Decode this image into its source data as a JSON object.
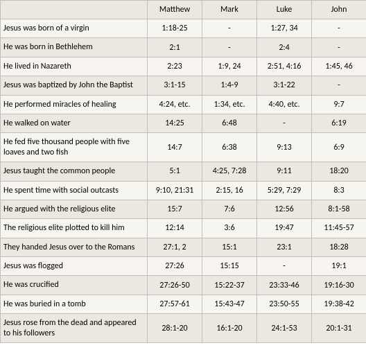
{
  "columns": [
    "Matthew",
    "Mark",
    "Luke",
    "John"
  ],
  "rows": [
    {
      "event": "Jesus was born of a virgin",
      "refs": [
        "1:18-25",
        "-",
        "1:27, 34",
        "-"
      ]
    },
    {
      "event": "He was born in Bethlehem",
      "refs": [
        "2:1",
        "-",
        "2:4",
        "-"
      ]
    },
    {
      "event": "He lived in Nazareth",
      "refs": [
        "2:23",
        "1:9, 24",
        "2:51, 4:16",
        "1:45, 46"
      ]
    },
    {
      "event": "Jesus was baptized by John the Baptist",
      "refs": [
        "3:1-15",
        "1:4-9",
        "3:1-22",
        "-"
      ]
    },
    {
      "event": "He performed miracles of healing",
      "refs": [
        "4:24, etc.",
        "1:34, etc.",
        "4:40, etc.",
        "9:7"
      ]
    },
    {
      "event": "He walked on water",
      "refs": [
        "14:25",
        "6:48",
        "-",
        "6:19"
      ]
    },
    {
      "event": "He fed five thousand people with five loaves and two fish",
      "refs": [
        "14:7",
        "6:38",
        "9:13",
        "6:9"
      ]
    },
    {
      "event": "Jesus taught the common people",
      "refs": [
        "5:1",
        "4:25, 7:28",
        "9:11",
        "18:20"
      ]
    },
    {
      "event": "He spent time with social outcasts",
      "refs": [
        "9:10, 21:31",
        "2:15, 16",
        "5:29, 7:29",
        "8:3"
      ]
    },
    {
      "event": "He argued with the religious elite",
      "refs": [
        "15:7",
        "7:6",
        "12:56",
        "8:1-58"
      ]
    },
    {
      "event": "The religious elite plotted to kill him",
      "refs": [
        "12:14",
        "3:6",
        "19:47",
        "11:45-57"
      ]
    },
    {
      "event": "They handed Jesus over to the Romans",
      "refs": [
        "27:1, 2",
        "15:1",
        "23:1",
        "18:28"
      ]
    },
    {
      "event": "Jesus was flogged",
      "refs": [
        "27:26",
        "15:15",
        "-",
        "19:1"
      ]
    },
    {
      "event": "He was crucified",
      "refs": [
        "27:26-50",
        "15:22-37",
        "23:33-46",
        "19:16-30"
      ]
    },
    {
      "event": "He was buried in a tomb",
      "refs": [
        "27:57-61",
        "15:43-47",
        "23:50-55",
        "19:38-42"
      ]
    },
    {
      "event": "Jesus rose from the dead and appeared to his followers",
      "refs": [
        "28:1-20",
        "16:1-20",
        "24:1-53",
        "20:1-31"
      ]
    }
  ]
}
